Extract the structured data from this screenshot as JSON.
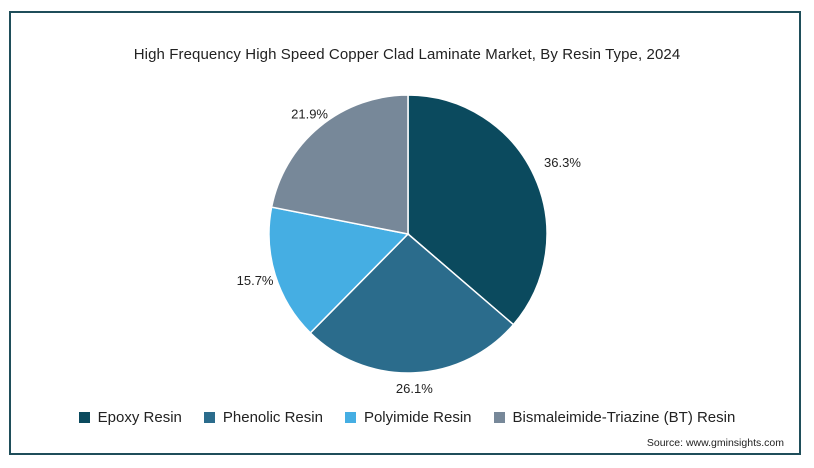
{
  "chart_data": {
    "type": "pie",
    "title": "High Frequency High Speed Copper Clad Laminate Market, By Resin Type, 2024",
    "categories": [
      "Epoxy Resin",
      "Phenolic Resin",
      "Polyimide Resin",
      "Bismaleimide-Triazine (BT) Resin"
    ],
    "values": [
      36.3,
      26.1,
      15.7,
      21.9
    ],
    "value_labels": [
      "36.3%",
      "26.1%",
      "15.7%",
      "21.9%"
    ],
    "colors": [
      "#0b4a5e",
      "#2b6c8c",
      "#45aee3",
      "#778899"
    ],
    "legend_position": "bottom",
    "start_angle": "12 o'clock, clockwise"
  },
  "source": "Source: www.gminsights.com"
}
